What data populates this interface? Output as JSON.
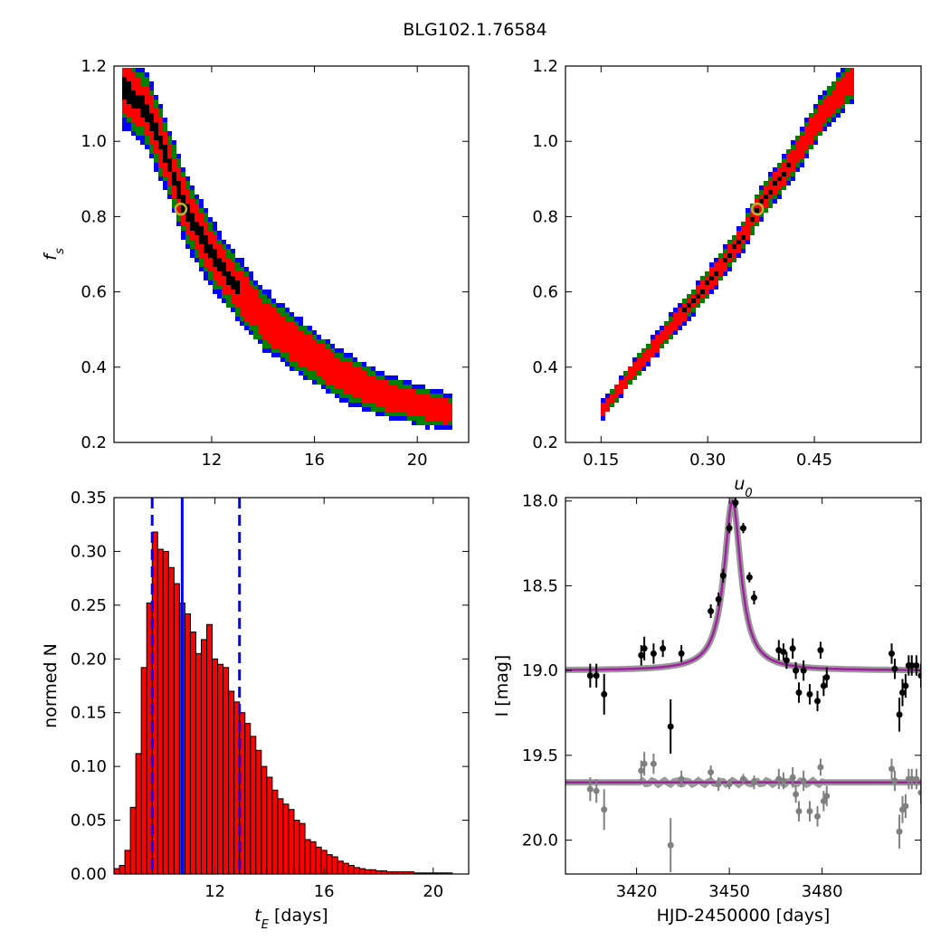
{
  "figure": {
    "title": "BLG102.1.76584"
  },
  "chart_data": [
    {
      "type": "heatmap",
      "panel": "top-left",
      "xlabel": "",
      "ylabel": "f_s",
      "xlim": [
        8.2,
        22.0
      ],
      "ylim": [
        0.2,
        1.2
      ],
      "xticks": [
        12,
        16,
        20
      ],
      "yticks": [
        0.2,
        0.4,
        0.6,
        0.8,
        1.0,
        1.2
      ],
      "xtick_labels": [
        "12",
        "16",
        "20"
      ],
      "ytick_labels": [
        "0.2",
        "0.4",
        "0.6",
        "0.8",
        "1.0",
        "1.2"
      ],
      "colors": {
        "outer": "#0000ff",
        "middle": "#008000",
        "inner": "#ff0000",
        "core": "#000000"
      },
      "ridge": [
        [
          8.5,
          1.15
        ],
        [
          9.5,
          1.08
        ],
        [
          10.3,
          0.95
        ],
        [
          11.0,
          0.82
        ],
        [
          12.0,
          0.7
        ],
        [
          13.0,
          0.61
        ],
        [
          14.0,
          0.53
        ],
        [
          15.5,
          0.45
        ],
        [
          17.0,
          0.38
        ],
        [
          18.5,
          0.33
        ],
        [
          20.0,
          0.3
        ],
        [
          21.2,
          0.28
        ]
      ],
      "best_fit": {
        "x": 10.8,
        "y": 0.82
      }
    },
    {
      "type": "heatmap",
      "panel": "top-right",
      "xlabel": "u_0",
      "ylabel": "",
      "xlim": [
        0.1,
        0.6
      ],
      "ylim": [
        0.2,
        1.2
      ],
      "xticks": [
        0.15,
        0.3,
        0.45
      ],
      "yticks": [
        0.2,
        0.4,
        0.6,
        0.8,
        1.0,
        1.2
      ],
      "xtick_labels": [
        "0.15",
        "0.30",
        "0.45"
      ],
      "ytick_labels": [
        "0.2",
        "0.4",
        "0.6",
        "0.8",
        "1.0",
        "1.2"
      ],
      "colors": {
        "outer": "#0000ff",
        "middle": "#008000",
        "inner": "#ff0000",
        "core": "#000000"
      },
      "ridge": [
        [
          0.15,
          0.28
        ],
        [
          0.2,
          0.4
        ],
        [
          0.25,
          0.51
        ],
        [
          0.3,
          0.62
        ],
        [
          0.35,
          0.75
        ],
        [
          0.37,
          0.82
        ],
        [
          0.42,
          0.95
        ],
        [
          0.46,
          1.07
        ],
        [
          0.5,
          1.16
        ]
      ],
      "best_fit": {
        "x": 0.37,
        "y": 0.82
      }
    },
    {
      "type": "bar",
      "panel": "bottom-left",
      "xlabel": "t_E [days]",
      "ylabel": "normed N",
      "xlim": [
        8.3,
        21.3
      ],
      "ylim": [
        0.0,
        0.35
      ],
      "xticks": [
        12,
        16,
        20
      ],
      "yticks": [
        0.0,
        0.05,
        0.1,
        0.15,
        0.2,
        0.25,
        0.3,
        0.35
      ],
      "xtick_labels": [
        "12",
        "16",
        "20"
      ],
      "ytick_labels": [
        "0.00",
        "0.05",
        "0.10",
        "0.15",
        "0.20",
        "0.25",
        "0.30",
        "0.35"
      ],
      "bin_start": 8.3,
      "bin_width": 0.2,
      "values": [
        0.005,
        0.008,
        0.022,
        0.062,
        0.112,
        0.192,
        0.252,
        0.318,
        0.302,
        0.3,
        0.285,
        0.27,
        0.252,
        0.242,
        0.225,
        0.205,
        0.218,
        0.232,
        0.2,
        0.195,
        0.192,
        0.17,
        0.16,
        0.15,
        0.14,
        0.128,
        0.115,
        0.1,
        0.09,
        0.078,
        0.07,
        0.065,
        0.06,
        0.05,
        0.047,
        0.032,
        0.03,
        0.025,
        0.022,
        0.018,
        0.016,
        0.012,
        0.01,
        0.008,
        0.006,
        0.005,
        0.004,
        0.004,
        0.003,
        0.003,
        0.002,
        0.002,
        0.002,
        0.002,
        0.002,
        0.001,
        0.001,
        0.001,
        0.001,
        0.001,
        0.001,
        0.001,
        0.0,
        0.0,
        0.0
      ],
      "bar_color": "#ff0000",
      "median": 10.8,
      "interval": [
        9.7,
        12.9
      ],
      "line_color": "#0000ff"
    },
    {
      "type": "scatter",
      "panel": "bottom-right",
      "xlabel": "HJD-2450000 [days]",
      "ylabel": "I [mag]",
      "xlim": [
        3397,
        3512
      ],
      "ylim": [
        20.2,
        17.98
      ],
      "y_inverted": true,
      "xticks": [
        3420,
        3450,
        3480
      ],
      "yticks": [
        18.0,
        18.5,
        19.0,
        19.5,
        20.0
      ],
      "xtick_labels": [
        "3420",
        "3450",
        "3480"
      ],
      "ytick_labels": [
        "18.0",
        "18.5",
        "19.0",
        "19.5",
        "20.0"
      ],
      "model": {
        "t0": 3451.0,
        "baseline": 19.0,
        "peak": 18.0,
        "width": 3.3,
        "color": "#a020a0"
      },
      "series": [
        {
          "color": "#000000",
          "points": [
            {
              "x": 3405,
              "y": 19.03,
              "e": 0.07
            },
            {
              "x": 3407,
              "y": 19.03,
              "e": 0.07
            },
            {
              "x": 3409.5,
              "y": 19.14,
              "e": 0.12
            },
            {
              "x": 3421.5,
              "y": 18.91,
              "e": 0.06
            },
            {
              "x": 3422.5,
              "y": 18.87,
              "e": 0.07
            },
            {
              "x": 3425.5,
              "y": 18.9,
              "e": 0.06
            },
            {
              "x": 3428.5,
              "y": 18.87,
              "e": 0.05
            },
            {
              "x": 3431,
              "y": 19.33,
              "e": 0.16
            },
            {
              "x": 3434.5,
              "y": 18.9,
              "e": 0.05
            },
            {
              "x": 3444,
              "y": 18.65,
              "e": 0.04
            },
            {
              "x": 3446.5,
              "y": 18.58,
              "e": 0.04
            },
            {
              "x": 3448,
              "y": 18.44,
              "e": 0.04
            },
            {
              "x": 3450,
              "y": 18.16,
              "e": 0.03
            },
            {
              "x": 3452,
              "y": 18.01,
              "e": 0.03
            },
            {
              "x": 3454.5,
              "y": 18.16,
              "e": 0.03
            },
            {
              "x": 3456.5,
              "y": 18.45,
              "e": 0.03
            },
            {
              "x": 3458,
              "y": 18.57,
              "e": 0.04
            },
            {
              "x": 3466,
              "y": 18.88,
              "e": 0.06
            },
            {
              "x": 3467.5,
              "y": 18.89,
              "e": 0.05
            },
            {
              "x": 3468.5,
              "y": 18.94,
              "e": 0.05
            },
            {
              "x": 3470.5,
              "y": 18.87,
              "e": 0.06
            },
            {
              "x": 3471.5,
              "y": 19.0,
              "e": 0.05
            },
            {
              "x": 3472.5,
              "y": 19.13,
              "e": 0.06
            },
            {
              "x": 3474,
              "y": 19.0,
              "e": 0.06
            },
            {
              "x": 3476,
              "y": 19.14,
              "e": 0.06
            },
            {
              "x": 3478.5,
              "y": 19.18,
              "e": 0.06
            },
            {
              "x": 3479.5,
              "y": 18.88,
              "e": 0.05
            },
            {
              "x": 3480.5,
              "y": 19.09,
              "e": 0.06
            },
            {
              "x": 3481.5,
              "y": 19.04,
              "e": 0.06
            },
            {
              "x": 3502.5,
              "y": 18.9,
              "e": 0.06
            },
            {
              "x": 3503.5,
              "y": 18.99,
              "e": 0.06
            },
            {
              "x": 3505,
              "y": 19.26,
              "e": 0.1
            },
            {
              "x": 3506,
              "y": 19.13,
              "e": 0.08
            },
            {
              "x": 3507,
              "y": 19.09,
              "e": 0.07
            },
            {
              "x": 3508,
              "y": 18.97,
              "e": 0.06
            },
            {
              "x": 3509,
              "y": 18.97,
              "e": 0.06
            },
            {
              "x": 3510.5,
              "y": 18.97,
              "e": 0.06
            },
            {
              "x": 3512,
              "y": 19.03,
              "e": 0.07
            }
          ]
        },
        {
          "color": "#808080",
          "points": [
            {
              "x": 3405,
              "y": 19.7,
              "e": 0.07
            },
            {
              "x": 3407,
              "y": 19.71,
              "e": 0.07
            },
            {
              "x": 3409.5,
              "y": 19.82,
              "e": 0.12
            },
            {
              "x": 3421.5,
              "y": 19.59,
              "e": 0.06
            },
            {
              "x": 3422.5,
              "y": 19.55,
              "e": 0.07
            },
            {
              "x": 3425.5,
              "y": 19.55,
              "e": 0.06
            },
            {
              "x": 3431,
              "y": 20.03,
              "e": 0.16
            },
            {
              "x": 3434.5,
              "y": 19.64,
              "e": 0.05
            },
            {
              "x": 3444,
              "y": 19.6,
              "e": 0.04
            },
            {
              "x": 3446.5,
              "y": 19.67,
              "e": 0.04
            },
            {
              "x": 3450,
              "y": 19.67,
              "e": 0.03
            },
            {
              "x": 3454.5,
              "y": 19.64,
              "e": 0.03
            },
            {
              "x": 3458,
              "y": 19.66,
              "e": 0.04
            },
            {
              "x": 3466,
              "y": 19.64,
              "e": 0.06
            },
            {
              "x": 3467.5,
              "y": 19.65,
              "e": 0.05
            },
            {
              "x": 3470.5,
              "y": 19.63,
              "e": 0.06
            },
            {
              "x": 3471.5,
              "y": 19.73,
              "e": 0.05
            },
            {
              "x": 3472.5,
              "y": 19.83,
              "e": 0.06
            },
            {
              "x": 3474,
              "y": 19.65,
              "e": 0.06
            },
            {
              "x": 3476,
              "y": 19.83,
              "e": 0.06
            },
            {
              "x": 3478.5,
              "y": 19.86,
              "e": 0.06
            },
            {
              "x": 3479.5,
              "y": 19.57,
              "e": 0.05
            },
            {
              "x": 3480.5,
              "y": 19.77,
              "e": 0.06
            },
            {
              "x": 3481.5,
              "y": 19.74,
              "e": 0.06
            },
            {
              "x": 3502.5,
              "y": 19.58,
              "e": 0.06
            },
            {
              "x": 3503.5,
              "y": 19.65,
              "e": 0.06
            },
            {
              "x": 3505,
              "y": 19.95,
              "e": 0.1
            },
            {
              "x": 3506,
              "y": 19.82,
              "e": 0.08
            },
            {
              "x": 3507,
              "y": 19.8,
              "e": 0.07
            },
            {
              "x": 3508,
              "y": 19.64,
              "e": 0.06
            },
            {
              "x": 3509,
              "y": 19.64,
              "e": 0.06
            },
            {
              "x": 3510.5,
              "y": 19.64,
              "e": 0.06
            },
            {
              "x": 3512,
              "y": 19.72,
              "e": 0.07
            }
          ]
        }
      ],
      "residual_line": {
        "y": 19.66,
        "color": "#a020a0"
      }
    }
  ]
}
